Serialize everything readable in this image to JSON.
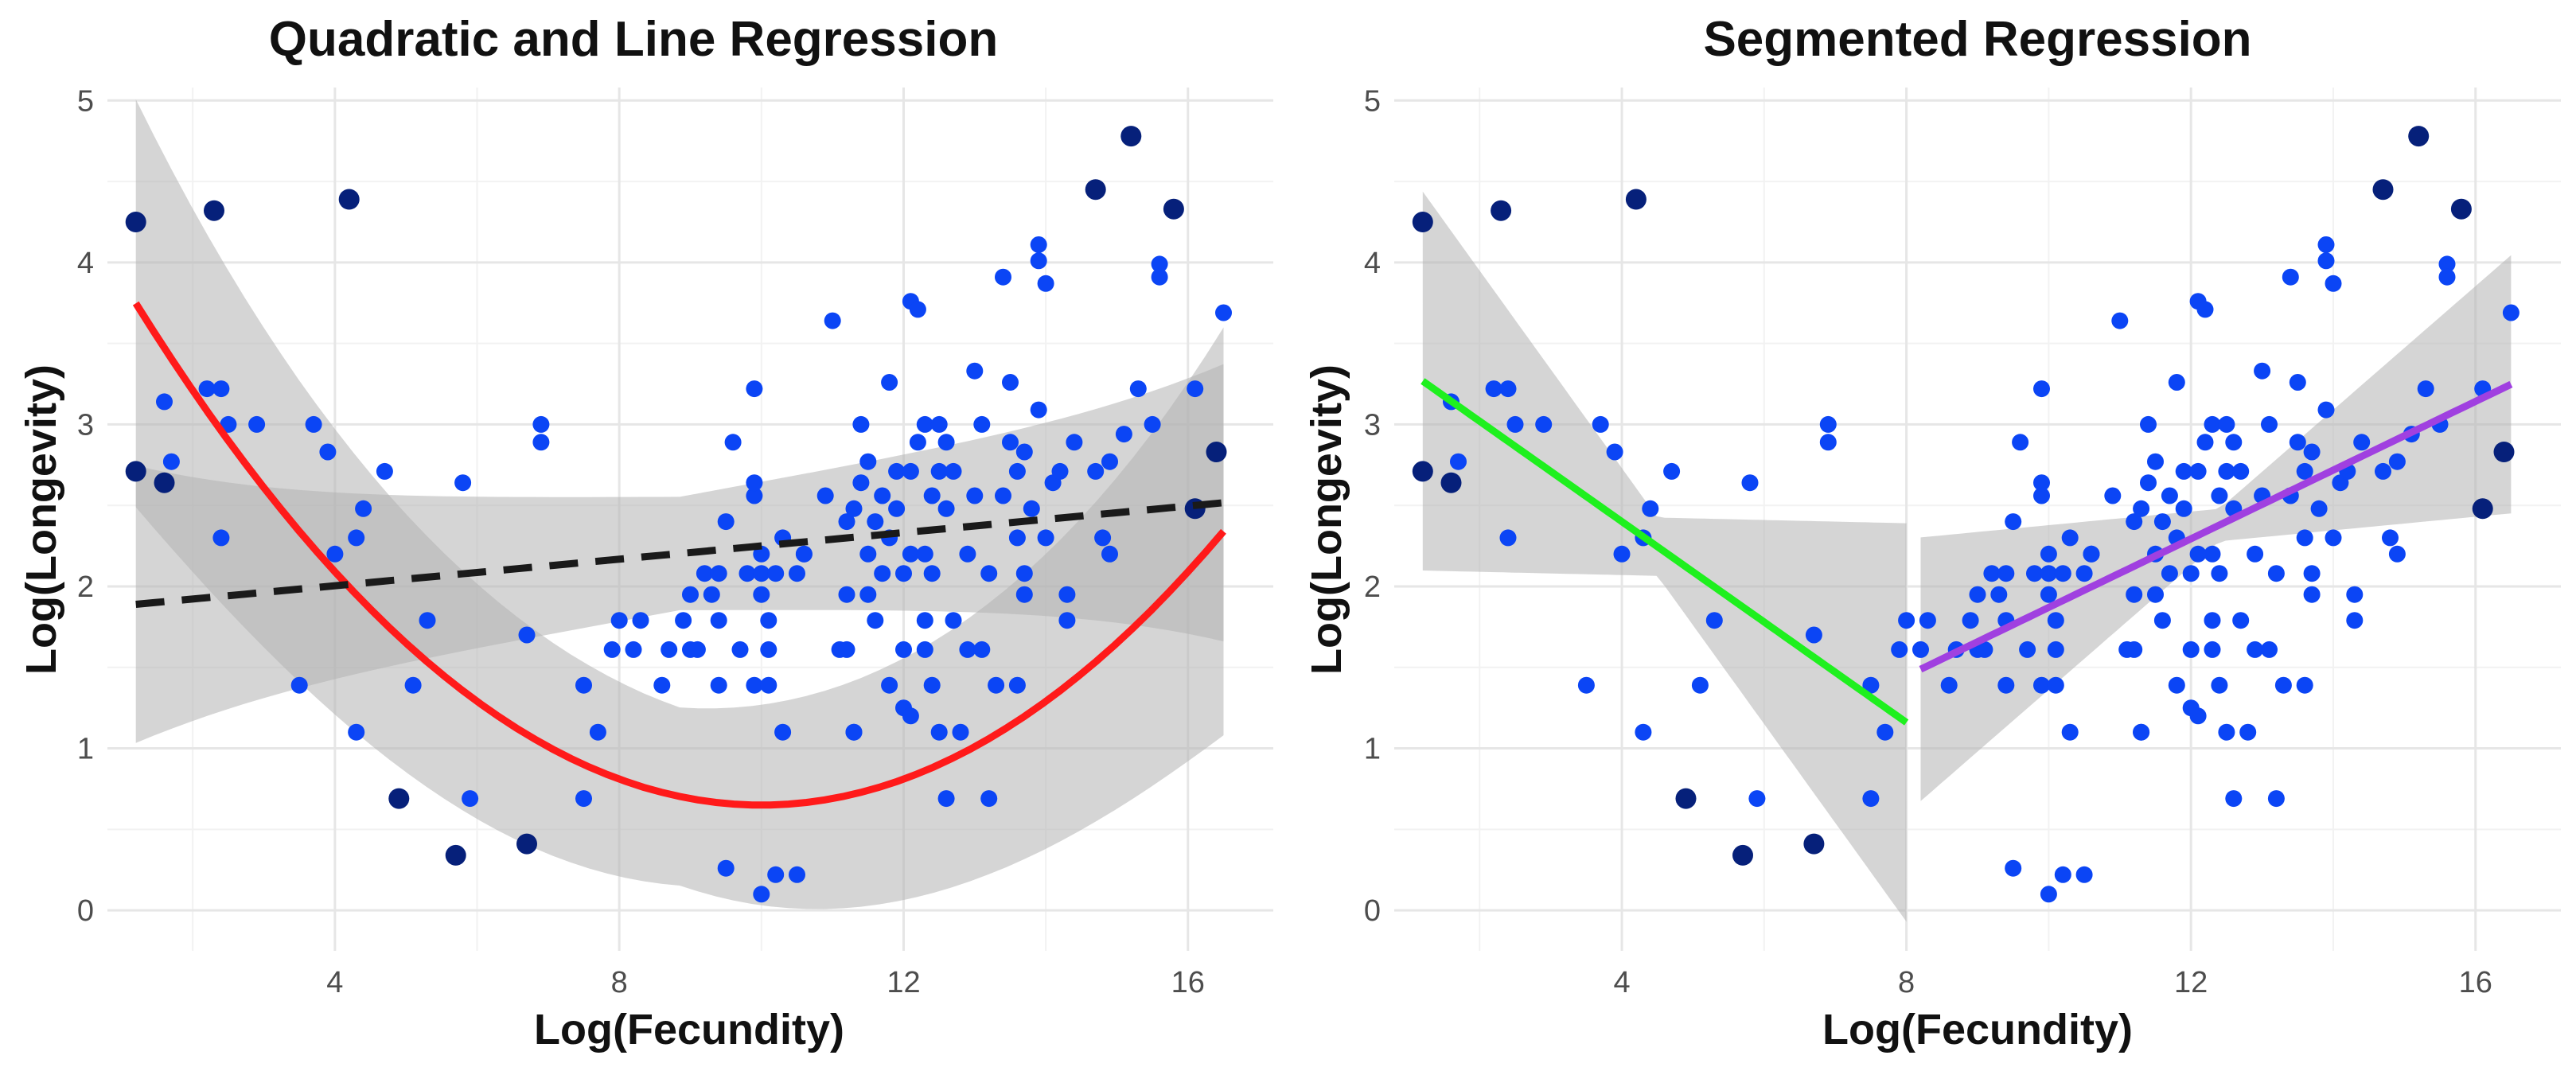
{
  "chart_data": [
    {
      "type": "scatter",
      "title": "Quadratic and Line Regression",
      "xlabel": "Log(Fecundity)",
      "ylabel": "Log(Longevity)",
      "xlim": [
        0.8,
        17.2
      ],
      "ylim": [
        -0.25,
        5.08
      ],
      "xticks": [
        4,
        8,
        12,
        16
      ],
      "yticks": [
        0,
        1,
        2,
        3,
        4,
        5
      ],
      "grid": true,
      "legend": "none",
      "fits": [
        {
          "name": "quadratic",
          "color": "#ff1a1a",
          "dashed": false,
          "x_range": [
            1.2,
            16.5
          ],
          "coef": [
            4.65,
            -0.8,
            0.04
          ],
          "se": [
            0.55,
            0.06,
            0.25
          ],
          "ribbon": true
        },
        {
          "name": "linear",
          "color": "#1a1a1a",
          "dashed": true,
          "x_range": [
            1.2,
            16.5
          ],
          "coef": [
            1.84,
            0.041,
            0
          ],
          "se": [
            0.35,
            0.04,
            0.2
          ],
          "ribbon": true
        }
      ]
    },
    {
      "type": "scatter",
      "title": "Segmented Regression",
      "xlabel": "Log(Fecundity)",
      "ylabel": "Log(Longevity)",
      "xlim": [
        0.8,
        17.2
      ],
      "ylim": [
        -0.25,
        5.08
      ],
      "xticks": [
        4,
        8,
        12,
        16
      ],
      "yticks": [
        0,
        1,
        2,
        3,
        4,
        5
      ],
      "grid": true,
      "legend": "none",
      "fits": [
        {
          "name": "segment-left",
          "color": "#1ef01e",
          "dashed": false,
          "x_range": [
            1.2,
            8.0
          ],
          "coef": [
            3.64,
            -0.31,
            0
          ],
          "se": [
            0.18,
            0.3,
            0
          ],
          "ribbon": true,
          "x_center": 4.5
        },
        {
          "name": "segment-right",
          "color": "#a040e0",
          "dashed": false,
          "x_range": [
            8.2,
            16.5
          ],
          "coef": [
            -0.25,
            0.212,
            0
          ],
          "se": [
            0.1,
            0.17,
            0
          ],
          "ribbon": true,
          "x_center": 12.4
        }
      ]
    }
  ],
  "points": [
    [
      1.2,
      4.25,
      "dark"
    ],
    [
      1.2,
      2.71,
      "dark"
    ],
    [
      1.6,
      2.64,
      "dark"
    ],
    [
      2.3,
      4.32,
      "dark"
    ],
    [
      4.2,
      4.39,
      "dark"
    ],
    [
      4.9,
      0.69,
      "dark"
    ],
    [
      5.7,
      0.34,
      "dark"
    ],
    [
      6.7,
      0.41,
      "dark"
    ],
    [
      14.7,
      4.45,
      "dark"
    ],
    [
      15.2,
      4.78,
      "dark"
    ],
    [
      15.8,
      4.33,
      "dark"
    ],
    [
      16.1,
      2.48,
      "dark"
    ],
    [
      16.4,
      2.83,
      "dark"
    ],
    [
      1.6,
      3.14,
      "blue"
    ],
    [
      1.7,
      2.77,
      "blue"
    ],
    [
      2.2,
      3.22,
      "blue"
    ],
    [
      2.4,
      3.22,
      "blue"
    ],
    [
      2.4,
      2.3,
      "blue"
    ],
    [
      2.5,
      3.0,
      "blue"
    ],
    [
      2.9,
      3.0,
      "blue"
    ],
    [
      3.5,
      1.39,
      "blue"
    ],
    [
      3.7,
      3.0,
      "blue"
    ],
    [
      3.9,
      2.83,
      "blue"
    ],
    [
      4.0,
      2.2,
      "blue"
    ],
    [
      4.3,
      2.3,
      "blue"
    ],
    [
      4.3,
      1.1,
      "blue"
    ],
    [
      4.4,
      2.48,
      "blue"
    ],
    [
      4.7,
      2.71,
      "blue"
    ],
    [
      5.1,
      1.39,
      "blue"
    ],
    [
      5.3,
      1.79,
      "blue"
    ],
    [
      5.8,
      2.64,
      "blue"
    ],
    [
      5.9,
      0.69,
      "blue"
    ],
    [
      6.7,
      1.7,
      "blue"
    ],
    [
      6.9,
      3.0,
      "blue"
    ],
    [
      6.9,
      2.89,
      "blue"
    ],
    [
      7.5,
      1.39,
      "blue"
    ],
    [
      7.5,
      0.69,
      "blue"
    ],
    [
      7.7,
      1.1,
      "blue"
    ],
    [
      7.9,
      1.61,
      "blue"
    ],
    [
      8.0,
      1.79,
      "blue"
    ],
    [
      8.2,
      1.61,
      "blue"
    ],
    [
      8.3,
      1.79,
      "blue"
    ],
    [
      8.7,
      1.61,
      "blue"
    ],
    [
      8.6,
      1.39,
      "blue"
    ],
    [
      8.9,
      1.79,
      "blue"
    ],
    [
      9.0,
      1.95,
      "blue"
    ],
    [
      9.0,
      1.61,
      "blue"
    ],
    [
      9.1,
      1.61,
      "blue"
    ],
    [
      9.2,
      2.08,
      "blue"
    ],
    [
      9.3,
      1.95,
      "blue"
    ],
    [
      9.4,
      2.08,
      "blue"
    ],
    [
      9.4,
      1.39,
      "blue"
    ],
    [
      9.4,
      1.79,
      "blue"
    ],
    [
      9.5,
      2.4,
      "blue"
    ],
    [
      9.5,
      0.26,
      "blue"
    ],
    [
      9.6,
      2.89,
      "blue"
    ],
    [
      9.7,
      1.61,
      "blue"
    ],
    [
      9.8,
      2.08,
      "blue"
    ],
    [
      9.9,
      2.56,
      "blue"
    ],
    [
      9.9,
      2.64,
      "blue"
    ],
    [
      9.9,
      3.22,
      "blue"
    ],
    [
      9.9,
      1.39,
      "blue"
    ],
    [
      10.0,
      1.95,
      "blue"
    ],
    [
      10.0,
      2.08,
      "blue"
    ],
    [
      10.0,
      2.2,
      "blue"
    ],
    [
      10.0,
      0.1,
      "blue"
    ],
    [
      10.1,
      1.79,
      "blue"
    ],
    [
      10.1,
      1.61,
      "blue"
    ],
    [
      10.1,
      1.39,
      "blue"
    ],
    [
      10.2,
      2.08,
      "blue"
    ],
    [
      10.2,
      0.22,
      "blue"
    ],
    [
      10.3,
      2.3,
      "blue"
    ],
    [
      10.3,
      1.1,
      "blue"
    ],
    [
      10.5,
      2.08,
      "blue"
    ],
    [
      10.5,
      0.22,
      "blue"
    ],
    [
      10.6,
      2.2,
      "blue"
    ],
    [
      10.6,
      2.2,
      "blue"
    ],
    [
      10.9,
      2.56,
      "blue"
    ],
    [
      11.0,
      3.64,
      "blue"
    ],
    [
      11.1,
      1.61,
      "blue"
    ],
    [
      11.2,
      1.61,
      "blue"
    ],
    [
      11.2,
      1.95,
      "blue"
    ],
    [
      11.2,
      2.4,
      "blue"
    ],
    [
      11.3,
      2.48,
      "blue"
    ],
    [
      11.3,
      1.1,
      "blue"
    ],
    [
      11.3,
      1.1,
      "blue"
    ],
    [
      11.4,
      3.0,
      "blue"
    ],
    [
      11.4,
      2.64,
      "blue"
    ],
    [
      11.5,
      2.2,
      "blue"
    ],
    [
      11.5,
      2.77,
      "blue"
    ],
    [
      11.5,
      1.95,
      "blue"
    ],
    [
      11.6,
      2.4,
      "blue"
    ],
    [
      11.6,
      1.79,
      "blue"
    ],
    [
      11.7,
      2.56,
      "blue"
    ],
    [
      11.7,
      2.08,
      "blue"
    ],
    [
      11.8,
      2.3,
      "blue"
    ],
    [
      11.8,
      1.39,
      "blue"
    ],
    [
      11.8,
      3.26,
      "blue"
    ],
    [
      11.9,
      2.71,
      "blue"
    ],
    [
      11.9,
      2.48,
      "blue"
    ],
    [
      12.0,
      2.08,
      "blue"
    ],
    [
      12.0,
      1.61,
      "blue"
    ],
    [
      12.0,
      1.25,
      "blue"
    ],
    [
      12.1,
      2.71,
      "blue"
    ],
    [
      12.1,
      2.2,
      "blue"
    ],
    [
      12.1,
      1.2,
      "blue"
    ],
    [
      12.1,
      3.76,
      "blue"
    ],
    [
      12.2,
      3.71,
      "blue"
    ],
    [
      12.2,
      2.89,
      "blue"
    ],
    [
      12.3,
      2.2,
      "blue"
    ],
    [
      12.3,
      3.0,
      "blue"
    ],
    [
      12.3,
      1.79,
      "blue"
    ],
    [
      12.3,
      1.61,
      "blue"
    ],
    [
      12.4,
      2.56,
      "blue"
    ],
    [
      12.4,
      1.39,
      "blue"
    ],
    [
      12.4,
      2.08,
      "blue"
    ],
    [
      12.5,
      3.0,
      "blue"
    ],
    [
      12.5,
      1.1,
      "blue"
    ],
    [
      12.5,
      2.71,
      "blue"
    ],
    [
      12.6,
      2.89,
      "blue"
    ],
    [
      12.6,
      2.48,
      "blue"
    ],
    [
      12.6,
      0.69,
      "blue"
    ],
    [
      12.7,
      2.71,
      "blue"
    ],
    [
      12.7,
      1.79,
      "blue"
    ],
    [
      12.8,
      1.1,
      "blue"
    ],
    [
      12.9,
      2.2,
      "blue"
    ],
    [
      12.9,
      1.61,
      "blue"
    ],
    [
      13.0,
      3.33,
      "blue"
    ],
    [
      13.0,
      2.56,
      "blue"
    ],
    [
      13.1,
      3.0,
      "blue"
    ],
    [
      13.1,
      1.61,
      "blue"
    ],
    [
      13.2,
      0.69,
      "blue"
    ],
    [
      13.2,
      2.08,
      "blue"
    ],
    [
      13.3,
      1.39,
      "blue"
    ],
    [
      13.4,
      3.91,
      "blue"
    ],
    [
      13.4,
      2.56,
      "blue"
    ],
    [
      13.5,
      2.89,
      "blue"
    ],
    [
      13.5,
      3.26,
      "blue"
    ],
    [
      13.6,
      2.71,
      "blue"
    ],
    [
      13.6,
      2.3,
      "blue"
    ],
    [
      13.6,
      1.39,
      "blue"
    ],
    [
      13.7,
      2.83,
      "blue"
    ],
    [
      13.7,
      1.95,
      "blue"
    ],
    [
      13.7,
      2.08,
      "blue"
    ],
    [
      13.8,
      2.48,
      "blue"
    ],
    [
      13.9,
      3.09,
      "blue"
    ],
    [
      13.9,
      4.11,
      "blue"
    ],
    [
      13.9,
      4.01,
      "blue"
    ],
    [
      14.0,
      3.87,
      "blue"
    ],
    [
      14.0,
      2.3,
      "blue"
    ],
    [
      14.1,
      2.64,
      "blue"
    ],
    [
      14.2,
      2.71,
      "blue"
    ],
    [
      14.3,
      1.95,
      "blue"
    ],
    [
      14.3,
      1.79,
      "blue"
    ],
    [
      14.4,
      2.89,
      "blue"
    ],
    [
      14.7,
      2.71,
      "blue"
    ],
    [
      14.8,
      2.3,
      "blue"
    ],
    [
      14.9,
      2.2,
      "blue"
    ],
    [
      14.9,
      2.77,
      "blue"
    ],
    [
      15.1,
      2.94,
      "blue"
    ],
    [
      15.3,
      3.22,
      "blue"
    ],
    [
      15.5,
      3.0,
      "blue"
    ],
    [
      15.6,
      3.99,
      "blue"
    ],
    [
      15.6,
      3.91,
      "blue"
    ],
    [
      16.1,
      3.22,
      "blue"
    ],
    [
      16.5,
      3.69,
      "blue"
    ]
  ],
  "colors": {
    "point_blue": "#0b45f5",
    "point_dark": "#06207a",
    "ribbon": "#b3b3b3",
    "grid_major": "#e6e6e6",
    "grid_minor": "#f2f2f2"
  }
}
